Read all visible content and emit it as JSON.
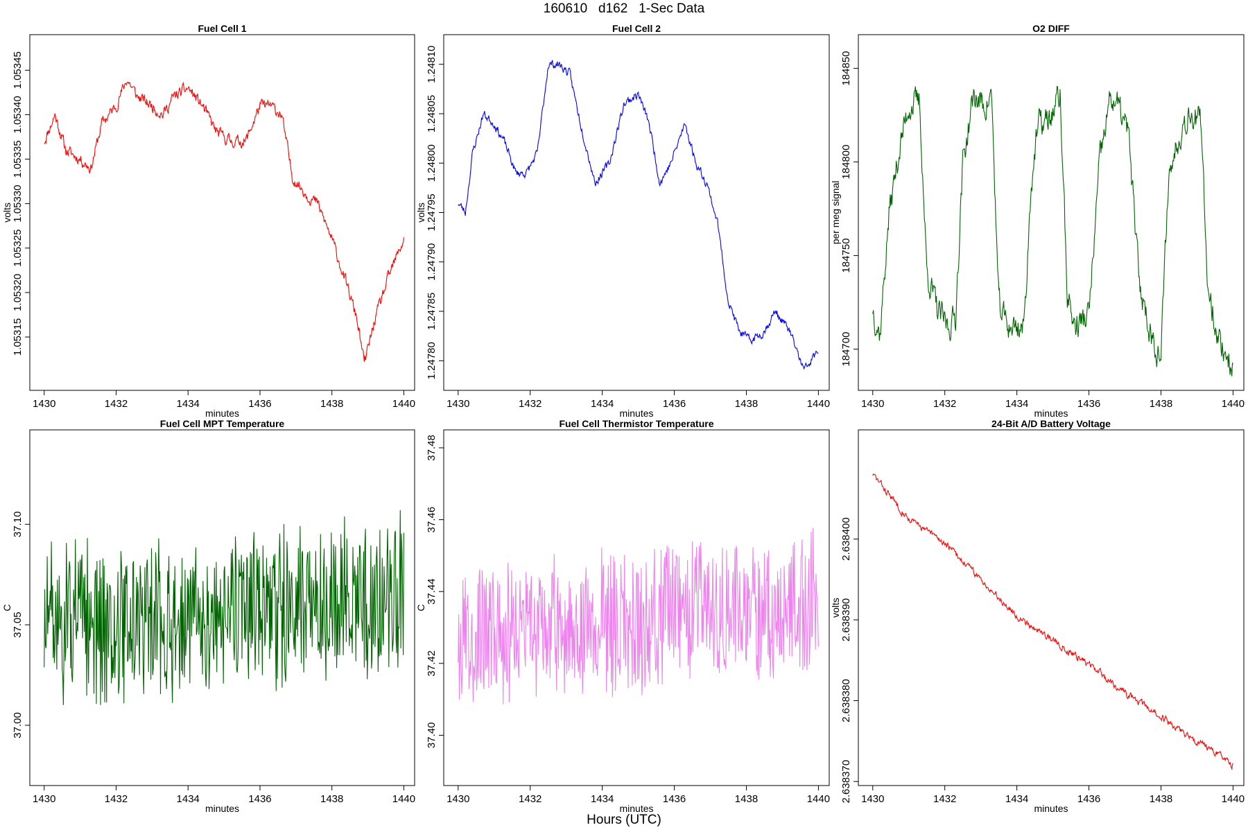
{
  "page": {
    "title": "160610   d162   1-Sec Data",
    "xlabel": "Hours (UTC)"
  },
  "chart_data": [
    {
      "type": "line",
      "title": "Fuel Cell 1",
      "xlabel": "minutes",
      "ylabel": "volts",
      "color": "#ff0000",
      "xlim": [
        1429.6,
        1440.3
      ],
      "ylim": [
        1.05309,
        1.05349
      ],
      "xticks": [
        1430,
        1432,
        1434,
        1436,
        1438,
        1440
      ],
      "yticks": [
        1.05315,
        1.0532,
        1.05325,
        1.0533,
        1.05335,
        1.0534,
        1.05345
      ],
      "ytick_labels": [
        "1.05315",
        "1.05320",
        "1.05325",
        "1.05330",
        "1.05335",
        "1.05340",
        "1.05345"
      ],
      "key_points": {
        "x": [
          1430.0,
          1430.3,
          1430.6,
          1431.0,
          1431.3,
          1431.6,
          1432.0,
          1432.3,
          1432.6,
          1433.0,
          1433.3,
          1433.6,
          1434.0,
          1434.4,
          1434.8,
          1435.2,
          1435.6,
          1436.0,
          1436.3,
          1436.6,
          1436.9,
          1437.3,
          1437.6,
          1438.0,
          1438.4,
          1438.7,
          1438.9,
          1439.2,
          1439.6,
          1440.0
        ],
        "y": [
          1.05337,
          1.0534,
          1.05336,
          1.05335,
          1.05334,
          1.05339,
          1.05341,
          1.05344,
          1.05342,
          1.05341,
          1.0534,
          1.05342,
          1.05343,
          1.05341,
          1.05338,
          1.05337,
          1.05337,
          1.05341,
          1.05341,
          1.0534,
          1.05333,
          1.05331,
          1.0533,
          1.05326,
          1.05321,
          1.05317,
          1.05312,
          1.05317,
          1.05322,
          1.05326
        ]
      },
      "noise": 1.2e-05,
      "seed": 11
    },
    {
      "type": "line",
      "title": "Fuel Cell 2",
      "xlabel": "minutes",
      "ylabel": "volts",
      "color": "#0000ff",
      "xlim": [
        1429.6,
        1440.3
      ],
      "ylim": [
        1.24777,
        1.24813
      ],
      "xticks": [
        1430,
        1432,
        1434,
        1436,
        1438,
        1440
      ],
      "yticks": [
        1.2478,
        1.24785,
        1.2479,
        1.24795,
        1.248,
        1.24805,
        1.2481
      ],
      "ytick_labels": [
        "1.24780",
        "1.24785",
        "1.24790",
        "1.24795",
        "1.24800",
        "1.24805",
        "1.24810"
      ],
      "key_points": {
        "x": [
          1430.0,
          1430.2,
          1430.4,
          1430.7,
          1431.0,
          1431.3,
          1431.6,
          1431.9,
          1432.2,
          1432.5,
          1432.8,
          1433.1,
          1433.4,
          1433.8,
          1434.2,
          1434.6,
          1435.0,
          1435.3,
          1435.6,
          1435.9,
          1436.3,
          1436.6,
          1436.9,
          1437.2,
          1437.5,
          1437.8,
          1438.1,
          1438.5,
          1438.8,
          1439.2,
          1439.6,
          1440.0
        ],
        "y": [
          1.24796,
          1.24795,
          1.24801,
          1.24805,
          1.24804,
          1.24802,
          1.24799,
          1.24799,
          1.24801,
          1.2481,
          1.2481,
          1.24809,
          1.24804,
          1.24798,
          1.248,
          1.24806,
          1.24807,
          1.24804,
          1.24798,
          1.248,
          1.24804,
          1.248,
          1.24798,
          1.24794,
          1.24786,
          1.24783,
          1.24782,
          1.24783,
          1.24785,
          1.24783,
          1.24779,
          1.24781
        ]
      },
      "noise": 8e-06,
      "seed": 23
    },
    {
      "type": "line",
      "title": "O2 DIFF",
      "xlabel": "minutes",
      "ylabel": "per meg signal",
      "color": "#006400",
      "xlim": [
        1429.6,
        1440.3
      ],
      "ylim": [
        184678,
        184868
      ],
      "xticks": [
        1430,
        1432,
        1434,
        1436,
        1438,
        1440
      ],
      "yticks": [
        184700,
        184750,
        184800,
        184850
      ],
      "ytick_labels": [
        "184700",
        "184750",
        "184800",
        "184850"
      ],
      "key_points": {
        "x": [
          1430.0,
          1430.2,
          1430.45,
          1430.75,
          1431.0,
          1431.3,
          1431.5,
          1431.8,
          1432.1,
          1432.3,
          1432.5,
          1432.8,
          1433.1,
          1433.3,
          1433.5,
          1433.8,
          1434.2,
          1434.4,
          1434.6,
          1434.9,
          1435.2,
          1435.4,
          1435.6,
          1436.0,
          1436.3,
          1436.6,
          1436.8,
          1437.1,
          1437.4,
          1437.7,
          1438.0,
          1438.2,
          1438.5,
          1438.8,
          1439.1,
          1439.3,
          1439.6,
          1440.0
        ],
        "y": [
          184722,
          184708,
          184772,
          184808,
          184830,
          184832,
          184742,
          184720,
          184712,
          184718,
          184800,
          184835,
          184830,
          184835,
          184722,
          184712,
          184712,
          184790,
          184820,
          184822,
          184836,
          184730,
          184712,
          184718,
          184800,
          184835,
          184830,
          184815,
          184735,
          184710,
          184695,
          184790,
          184815,
          184828,
          184820,
          184735,
          184705,
          184690
        ]
      },
      "noise": 14,
      "seed": 37
    },
    {
      "type": "line",
      "title": "Fuel Cell MPT Temperature",
      "xlabel": "minutes",
      "ylabel": "C",
      "color": "#006400",
      "xlim": [
        1429.6,
        1440.3
      ],
      "ylim": [
        36.97,
        37.147
      ],
      "xticks": [
        1430,
        1432,
        1434,
        1436,
        1438,
        1440
      ],
      "yticks": [
        37.0,
        37.05,
        37.1
      ],
      "ytick_labels": [
        "37.00",
        "37.05",
        "37.10"
      ],
      "key_points": {
        "x": [
          1430.0,
          1435.0,
          1437.5,
          1440.0
        ],
        "y": [
          37.05,
          37.052,
          37.06,
          37.068
        ]
      },
      "noise": 0.045,
      "seed": 51
    },
    {
      "type": "line",
      "title": "Fuel Cell Thermistor Temperature",
      "xlabel": "minutes",
      "ylabel": "C",
      "color": "#ee82ee",
      "xlim": [
        1429.6,
        1440.3
      ],
      "ylim": [
        37.386,
        37.485
      ],
      "xticks": [
        1430,
        1432,
        1434,
        1436,
        1438,
        1440
      ],
      "yticks": [
        37.4,
        37.42,
        37.44,
        37.46,
        37.48
      ],
      "ytick_labels": [
        "37.40",
        "37.42",
        "37.44",
        "37.46",
        "37.48"
      ],
      "key_points": {
        "x": [
          1430.0,
          1433.0,
          1436.0,
          1440.0
        ],
        "y": [
          37.428,
          37.43,
          37.433,
          37.437
        ]
      },
      "noise": 0.022,
      "seed": 67
    },
    {
      "type": "line",
      "title": "24-Bit A/D Battery Voltage",
      "xlabel": "minutes",
      "ylabel": "volts",
      "color": "#ff0000",
      "xlim": [
        1429.6,
        1440.3
      ],
      "ylim": [
        2.6383695,
        2.6384135
      ],
      "xticks": [
        1430,
        1432,
        1434,
        1436,
        1438,
        1440
      ],
      "yticks": [
        2.63837,
        2.63838,
        2.63839,
        2.6384
      ],
      "ytick_labels": [
        "2.638370",
        "2.638380",
        "2.638390",
        "2.638400"
      ],
      "key_points": {
        "x": [
          1430.0,
          1431.0,
          1432.0,
          1433.0,
          1434.0,
          1435.0,
          1436.0,
          1437.0,
          1438.0,
          1439.0,
          1440.0
        ],
        "y": [
          2.638408,
          2.6384025,
          2.6383995,
          2.638395,
          2.6383905,
          2.6383875,
          2.6383845,
          2.638381,
          2.638378,
          2.638375,
          2.638372
        ]
      },
      "noise": 8e-07,
      "seed": 83
    }
  ]
}
